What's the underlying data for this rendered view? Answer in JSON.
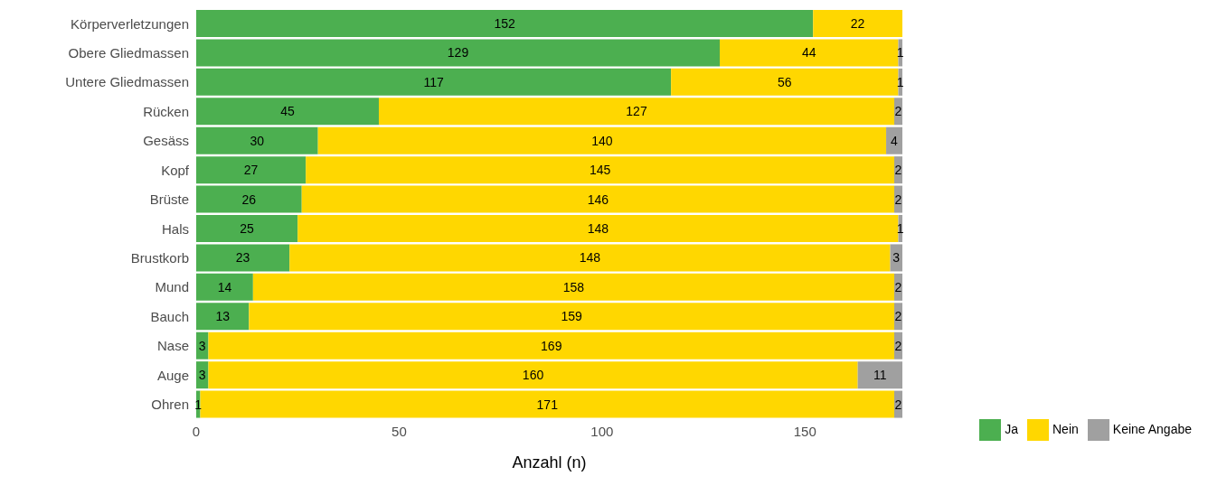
{
  "chart_data": {
    "type": "bar",
    "orientation": "horizontal",
    "stacked": true,
    "xlabel": "Anzahl (n)",
    "categories": [
      "Körperverletzungen",
      "Obere Gliedmassen",
      "Untere Gliedmassen",
      "Rücken",
      "Gesäss",
      "Kopf",
      "Brüste",
      "Hals",
      "Brustkorb",
      "Mund",
      "Bauch",
      "Nase",
      "Auge",
      "Ohren"
    ],
    "series": [
      {
        "name": "Ja",
        "color": "#4caf50",
        "values": [
          152,
          129,
          117,
          45,
          30,
          27,
          26,
          25,
          23,
          14,
          13,
          3,
          3,
          1
        ]
      },
      {
        "name": "Nein",
        "color": "#ffd700",
        "values": [
          22,
          44,
          56,
          127,
          140,
          145,
          146,
          148,
          148,
          158,
          159,
          169,
          160,
          171
        ]
      },
      {
        "name": "Keine Angabe",
        "color": "#a0a0a0",
        "values": [
          null,
          1,
          1,
          2,
          4,
          2,
          2,
          1,
          3,
          2,
          2,
          2,
          11,
          2
        ]
      }
    ],
    "xlim": [
      0,
      174
    ],
    "xticks": [
      0,
      50,
      100,
      150
    ],
    "data_labels": true,
    "grid": false,
    "legend": "bottom right"
  }
}
